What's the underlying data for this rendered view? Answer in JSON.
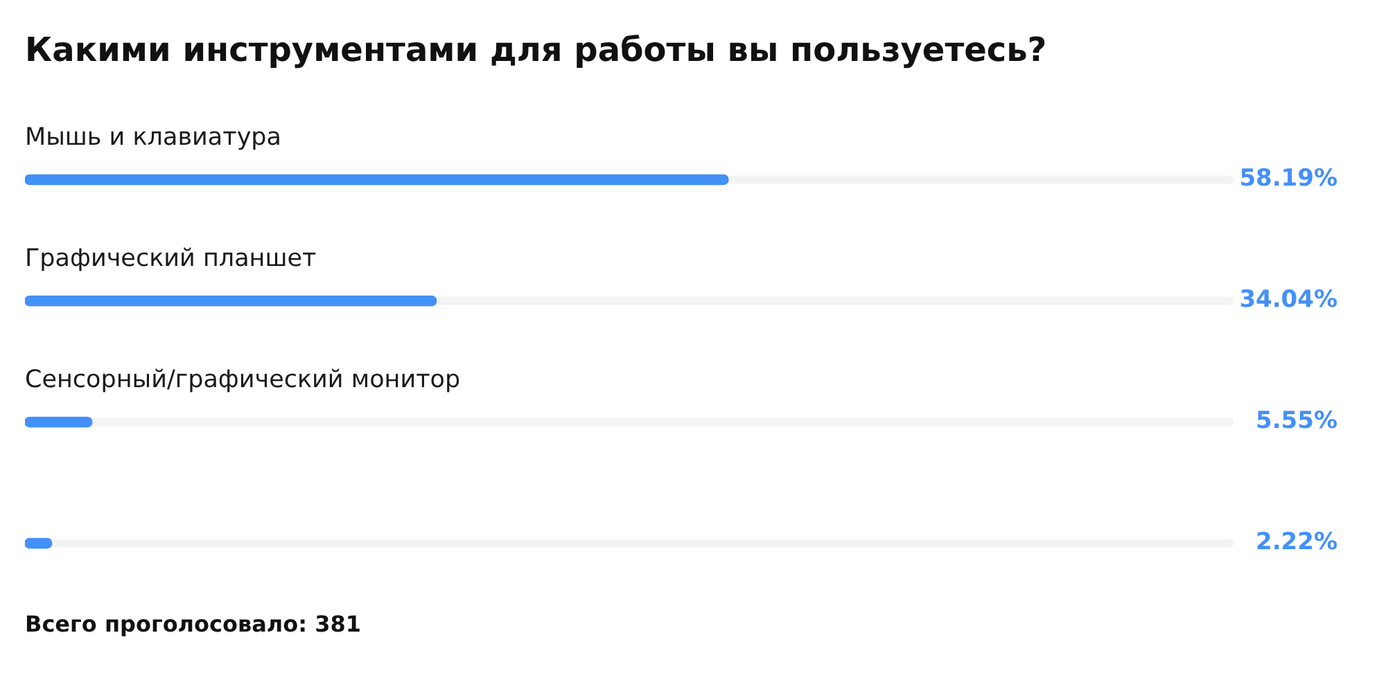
{
  "chart_data": {
    "type": "bar",
    "orientation": "horizontal",
    "title": "Какими инструментами для работы вы пользуетесь?",
    "categories": [
      "Мышь и клавиатура",
      "Графический планшет",
      "Сенсорный/графический монитор",
      null
    ],
    "values": [
      58.19,
      34.04,
      5.55,
      2.22
    ],
    "color": "#4390f8",
    "value_labels": [
      "58.19%",
      "34.04%",
      "5.55%",
      "2.22%"
    ],
    "xlim": [
      0,
      100
    ],
    "tick_labels": "y",
    "annotations": [
      "Всего проголосовало: 381"
    ]
  }
}
